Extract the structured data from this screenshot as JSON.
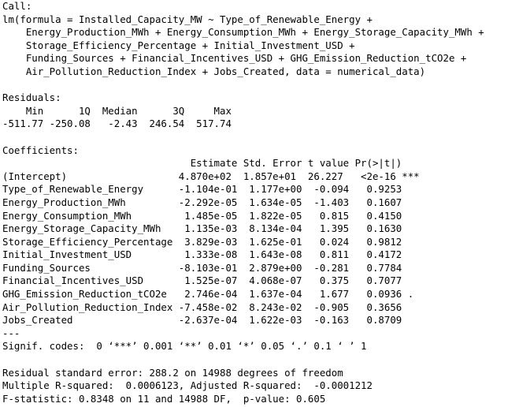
{
  "console": {
    "lines": [
      "Call:",
      "lm(formula = Installed_Capacity_MW ~ Type_of_Renewable_Energy +",
      "    Energy_Production_MWh + Energy_Consumption_MWh + Energy_Storage_Capacity_MWh +",
      "    Storage_Efficiency_Percentage + Initial_Investment_USD +",
      "    Funding_Sources + Financial_Incentives_USD + GHG_Emission_Reduction_tCO2e +",
      "    Air_Pollution_Reduction_Index + Jobs_Created, data = numerical_data)",
      "",
      "Residuals:",
      "    Min      1Q  Median      3Q     Max ",
      "-511.77 -250.08   -2.43  246.54  517.74 ",
      "",
      "Coefficients:",
      "                                Estimate Std. Error t value Pr(>|t|)    ",
      "(Intercept)                   4.870e+02  1.857e+01  26.227   <2e-16 ***",
      "Type_of_Renewable_Energy      -1.104e-01  1.177e+00  -0.094   0.9253    ",
      "Energy_Production_MWh         -2.292e-05  1.634e-05  -1.403   0.1607    ",
      "Energy_Consumption_MWh         1.485e-05  1.822e-05   0.815   0.4150    ",
      "Energy_Storage_Capacity_MWh    1.135e-03  8.134e-04   1.395   0.1630    ",
      "Storage_Efficiency_Percentage  3.829e-03  1.625e-01   0.024   0.9812    ",
      "Initial_Investment_USD         1.333e-08  1.643e-08   0.811   0.4172    ",
      "Funding_Sources               -8.103e-01  2.879e+00  -0.281   0.7784    ",
      "Financial_Incentives_USD       1.525e-07  4.068e-07   0.375   0.7077    ",
      "GHG_Emission_Reduction_tCO2e   2.746e-04  1.637e-04   1.677   0.0936 .  ",
      "Air_Pollution_Reduction_Index -7.458e-02  8.243e-02  -0.905   0.3656    ",
      "Jobs_Created                  -2.637e-04  1.622e-03  -0.163   0.8709    ",
      "---",
      "Signif. codes:  0 ‘***’ 0.001 ‘**’ 0.01 ‘*’ 0.05 ‘.’ 0.1 ‘ ’ 1",
      "",
      "Residual standard error: 288.2 on 14988 degrees of freedom",
      "Multiple R-squared:  0.0006123,\tAdjusted R-squared:  -0.0001212 ",
      "F-statistic: 0.8348 on 11 and 14988 DF,  p-value: 0.605"
    ]
  }
}
